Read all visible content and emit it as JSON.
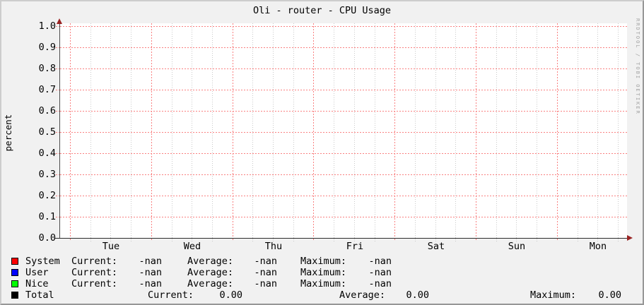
{
  "title": "Oli - router - CPU Usage",
  "watermark": "RRDTOOL / TOBI OETIKER",
  "y_axis": {
    "label": "percent",
    "ticks": [
      "1.0",
      "0.9",
      "0.8",
      "0.7",
      "0.6",
      "0.5",
      "0.4",
      "0.3",
      "0.2",
      "0.1",
      "0.0"
    ]
  },
  "x_axis": {
    "ticks": [
      "Tue",
      "Wed",
      "Thu",
      "Fri",
      "Sat",
      "Sun",
      "Mon"
    ]
  },
  "legend": {
    "col_labels": {
      "current": "Current:",
      "average": "Average:",
      "maximum": "Maximum:"
    },
    "rows": [
      {
        "name": "System",
        "color": "#ff0000",
        "current": "-nan",
        "average": "-nan",
        "maximum": "-nan"
      },
      {
        "name": "User",
        "color": "#0000ff",
        "current": "-nan",
        "average": "-nan",
        "maximum": "-nan"
      },
      {
        "name": "Nice",
        "color": "#00ff00",
        "current": "-nan",
        "average": "-nan",
        "maximum": "-nan"
      },
      {
        "name": "Total",
        "color": "#000000",
        "current": "0.00",
        "average": "0.00",
        "maximum": "0.00"
      }
    ]
  },
  "chart_data": {
    "type": "line",
    "title": "Oli - router - CPU Usage",
    "xlabel": "",
    "ylabel": "percent",
    "ylim": [
      0.0,
      1.0
    ],
    "y_tick_step": 0.1,
    "x_categories": [
      "Tue",
      "Wed",
      "Thu",
      "Fri",
      "Sat",
      "Sun",
      "Mon"
    ],
    "grid": true,
    "legend_position": "bottom",
    "series": [
      {
        "name": "System",
        "color": "#ff0000",
        "values": [],
        "stats": {
          "current": "-nan",
          "average": "-nan",
          "maximum": "-nan"
        }
      },
      {
        "name": "User",
        "color": "#0000ff",
        "values": [],
        "stats": {
          "current": "-nan",
          "average": "-nan",
          "maximum": "-nan"
        }
      },
      {
        "name": "Nice",
        "color": "#00ff00",
        "values": [],
        "stats": {
          "current": "-nan",
          "average": "-nan",
          "maximum": "-nan"
        }
      },
      {
        "name": "Total",
        "color": "#000000",
        "values": [],
        "stats": {
          "current": "0.00",
          "average": "0.00",
          "maximum": "0.00"
        }
      }
    ],
    "note": "plot area is empty - all series NaN or zero"
  }
}
